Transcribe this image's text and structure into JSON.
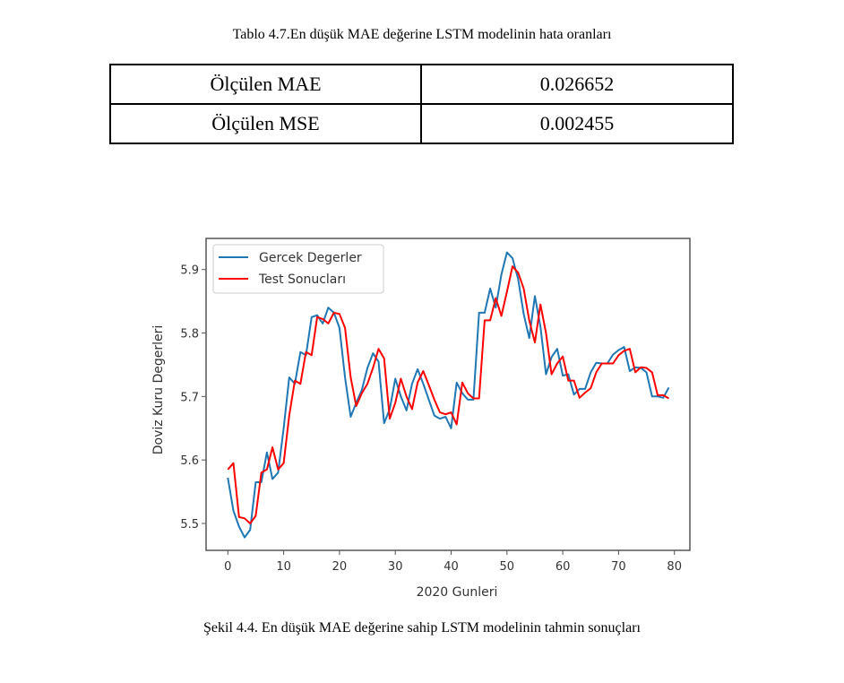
{
  "table": {
    "caption": "Tablo 4.7.En düşük MAE değerine LSTM modelinin hata oranları",
    "rows": [
      {
        "label": "Ölçülen MAE",
        "value": "0.026652"
      },
      {
        "label": "Ölçülen MSE",
        "value": "0.002455"
      }
    ]
  },
  "figure": {
    "caption": "Şekil 4.4. En düşük MAE değerine sahip LSTM modelinin tahmin sonuçları"
  },
  "chart_data": {
    "type": "line",
    "title": "",
    "xlabel": "2020 Gunleri",
    "ylabel": "Doviz Kuru Degerleri",
    "xlim": [
      -4,
      83
    ],
    "ylim": [
      5.455,
      5.95
    ],
    "xticks": [
      0,
      10,
      20,
      30,
      40,
      50,
      60,
      70,
      80
    ],
    "yticks": [
      5.5,
      5.6,
      5.7,
      5.8,
      5.9
    ],
    "ytick_labels": [
      "5.5",
      "5.6",
      "5.7",
      "5.8",
      "5.9"
    ],
    "grid": false,
    "legend_position": "top-left",
    "x": [
      0,
      1,
      2,
      3,
      4,
      5,
      6,
      7,
      8,
      9,
      10,
      11,
      12,
      13,
      14,
      15,
      16,
      17,
      18,
      19,
      20,
      21,
      22,
      23,
      24,
      25,
      26,
      27,
      28,
      29,
      30,
      31,
      32,
      33,
      34,
      35,
      36,
      37,
      38,
      39,
      40,
      41,
      42,
      43,
      44,
      45,
      46,
      47,
      48,
      49,
      50,
      51,
      52,
      53,
      54,
      55,
      56,
      57,
      58,
      59,
      60,
      61,
      62,
      63,
      64,
      65,
      66,
      67,
      68,
      69,
      70,
      71,
      72,
      73,
      74,
      75,
      76,
      77,
      78,
      79
    ],
    "series": [
      {
        "name": "Gercek Degerler",
        "color": "#1f77b4",
        "values": [
          5.572,
          5.52,
          5.495,
          5.478,
          5.49,
          5.565,
          5.565,
          5.612,
          5.57,
          5.58,
          5.65,
          5.73,
          5.72,
          5.77,
          5.765,
          5.825,
          5.828,
          5.815,
          5.84,
          5.832,
          5.808,
          5.73,
          5.668,
          5.69,
          5.71,
          5.745,
          5.768,
          5.755,
          5.658,
          5.68,
          5.728,
          5.7,
          5.678,
          5.72,
          5.743,
          5.72,
          5.695,
          5.67,
          5.665,
          5.668,
          5.65,
          5.722,
          5.705,
          5.695,
          5.695,
          5.832,
          5.832,
          5.87,
          5.84,
          5.892,
          5.927,
          5.918,
          5.885,
          5.83,
          5.792,
          5.858,
          5.81,
          5.735,
          5.762,
          5.775,
          5.733,
          5.735,
          5.703,
          5.712,
          5.712,
          5.738,
          5.753,
          5.752,
          5.752,
          5.766,
          5.773,
          5.778,
          5.74,
          5.746,
          5.745,
          5.738,
          5.7,
          5.7,
          5.698,
          5.714
        ]
      },
      {
        "name": "Test Sonucları",
        "color": "#ff0000",
        "values": [
          5.585,
          5.595,
          5.51,
          5.508,
          5.5,
          5.512,
          5.58,
          5.585,
          5.62,
          5.585,
          5.595,
          5.67,
          5.725,
          5.72,
          5.77,
          5.765,
          5.825,
          5.822,
          5.815,
          5.832,
          5.83,
          5.808,
          5.73,
          5.685,
          5.705,
          5.72,
          5.745,
          5.775,
          5.76,
          5.665,
          5.69,
          5.728,
          5.7,
          5.68,
          5.722,
          5.74,
          5.718,
          5.695,
          5.675,
          5.672,
          5.675,
          5.656,
          5.722,
          5.705,
          5.697,
          5.697,
          5.82,
          5.82,
          5.855,
          5.827,
          5.865,
          5.905,
          5.895,
          5.87,
          5.82,
          5.785,
          5.845,
          5.8,
          5.735,
          5.752,
          5.763,
          5.725,
          5.725,
          5.698,
          5.706,
          5.713,
          5.738,
          5.752,
          5.752,
          5.752,
          5.765,
          5.772,
          5.775,
          5.738,
          5.746,
          5.745,
          5.738,
          5.702,
          5.702,
          5.697
        ]
      }
    ]
  }
}
